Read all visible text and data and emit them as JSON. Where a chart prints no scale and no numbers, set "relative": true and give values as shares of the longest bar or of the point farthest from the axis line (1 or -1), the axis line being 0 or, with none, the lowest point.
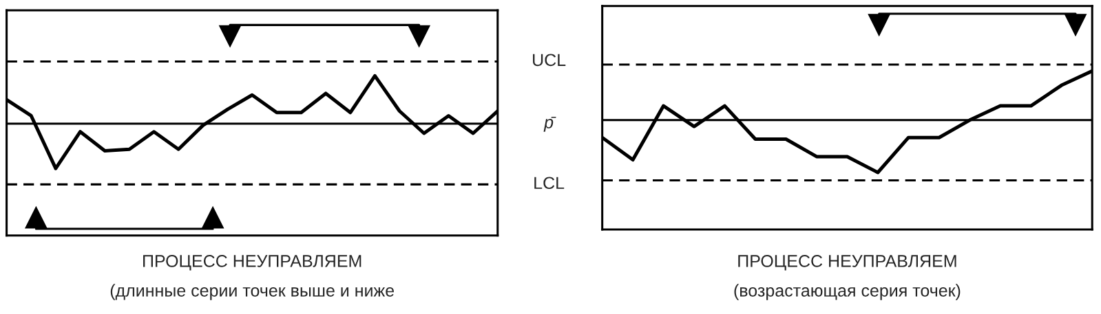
{
  "chart_data": [
    {
      "type": "line",
      "relative": true,
      "title": "ПРОЦЕСС НЕУПРАВЛЯЕМ",
      "subtitle": "(длинные серии точек выше и ниже",
      "grid": false,
      "legend": false,
      "marker": "none",
      "line_style": "solid",
      "categories": [
        null,
        null,
        null,
        null,
        null,
        null,
        null,
        null,
        null,
        null,
        null,
        null,
        null,
        null,
        null,
        null,
        null,
        null,
        null,
        null,
        null
      ],
      "series": [
        {
          "color": "#000000",
          "values": [
            0.85,
            0.75,
            0.42,
            0.65,
            0.53,
            0.54,
            0.65,
            0.54,
            0.69,
            0.79,
            0.88,
            0.77,
            0.77,
            0.89,
            0.77,
            1.0,
            0.78,
            0.64,
            0.75,
            0.64,
            0.78
          ]
        }
      ],
      "ref_lines": [
        {
          "axis": "y",
          "value": 1.09,
          "label": "UCL",
          "line_style": "dashed",
          "color": "#000000"
        },
        {
          "axis": "y",
          "value": 0.7,
          "label": "p̄",
          "line_style": "solid",
          "color": "#000000"
        },
        {
          "axis": "y",
          "value": 0.32,
          "label": "LCL",
          "line_style": "dashed",
          "color": "#000000"
        }
      ]
    },
    {
      "type": "line",
      "relative": true,
      "title": "ПРОЦЕСС НЕУПРАВЛЯЕМ",
      "subtitle": "(возрастающая серия точек)",
      "grid": false,
      "legend": false,
      "marker": "none",
      "line_style": "solid",
      "categories": [
        null,
        null,
        null,
        null,
        null,
        null,
        null,
        null,
        null,
        null,
        null,
        null,
        null,
        null,
        null,
        null,
        null
      ],
      "series": [
        {
          "color": "#000000",
          "values": [
            0.58,
            0.44,
            0.78,
            0.65,
            0.78,
            0.57,
            0.57,
            0.46,
            0.46,
            0.36,
            0.58,
            0.58,
            0.69,
            0.78,
            0.78,
            0.91,
            1.0
          ]
        }
      ],
      "ref_lines": [
        {
          "axis": "y",
          "value": 1.04,
          "line_style": "dashed",
          "color": "#000000"
        },
        {
          "axis": "y",
          "value": 0.69,
          "line_style": "solid",
          "color": "#000000"
        },
        {
          "axis": "y",
          "value": 0.31,
          "line_style": "dashed",
          "color": "#000000"
        }
      ]
    }
  ]
}
